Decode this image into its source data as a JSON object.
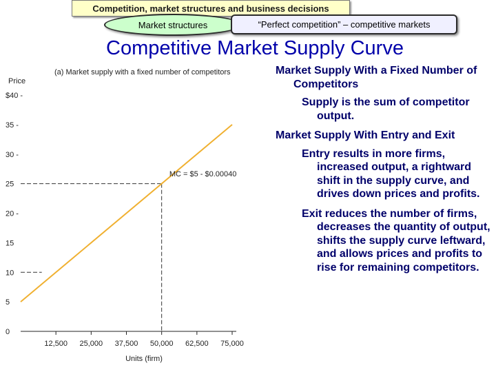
{
  "header": {
    "topic": "Competition, market structures and business decisions",
    "section": "Market structures",
    "current": "“Perfect competition” – competitive markets"
  },
  "slide": {
    "title": "Competitive Market Supply Curve",
    "bullets": [
      {
        "level": 1,
        "text": "Market Supply With a Fixed Number of Competitors"
      },
      {
        "level": 2,
        "text": "Supply is the sum of competitor output."
      },
      {
        "level": 1,
        "text": "Market Supply With Entry and Exit"
      },
      {
        "level": 2,
        "text": "Entry results in more firms, increased output, a rightward shift in the supply curve, and drives down prices and profits."
      },
      {
        "level": 2,
        "text": "Exit reduces the number of firms, decreases the quantity of output, shifts the supply curve leftward, and allows prices and profits to rise for remaining competitors."
      }
    ]
  },
  "chart_data": {
    "type": "line",
    "title": "(a) Market supply with a fixed number of competitors",
    "ylabel": "Price",
    "xlabel": "Units (firm)",
    "ylim": [
      0,
      40
    ],
    "xlim": [
      0,
      75000
    ],
    "y_ticks": [
      0,
      5,
      10,
      15,
      20,
      25,
      30,
      35,
      40
    ],
    "y_tick_labels": [
      "0",
      "5",
      "10",
      "15",
      "20 -",
      "25",
      "30 -",
      "35 -",
      "$40 -"
    ],
    "x_ticks": [
      12500,
      25000,
      37500,
      50000,
      62500,
      75000
    ],
    "x_tick_labels": [
      "12,500",
      "25,000",
      "37,500",
      "50,000",
      "62,500",
      "75,000"
    ],
    "series": [
      {
        "name": "MC = $5 - $0.00040",
        "x": [
          0,
          75000
        ],
        "y": [
          5,
          35
        ],
        "color": "#f0b030"
      }
    ],
    "annotations": [
      {
        "text": "MC = $5 - $0.00040",
        "x": 52000,
        "y": 26
      }
    ],
    "reference_lines": [
      {
        "type": "dashed",
        "x": 50000,
        "y": 25
      },
      {
        "type": "dashed",
        "y": 10
      }
    ],
    "grid": false
  }
}
